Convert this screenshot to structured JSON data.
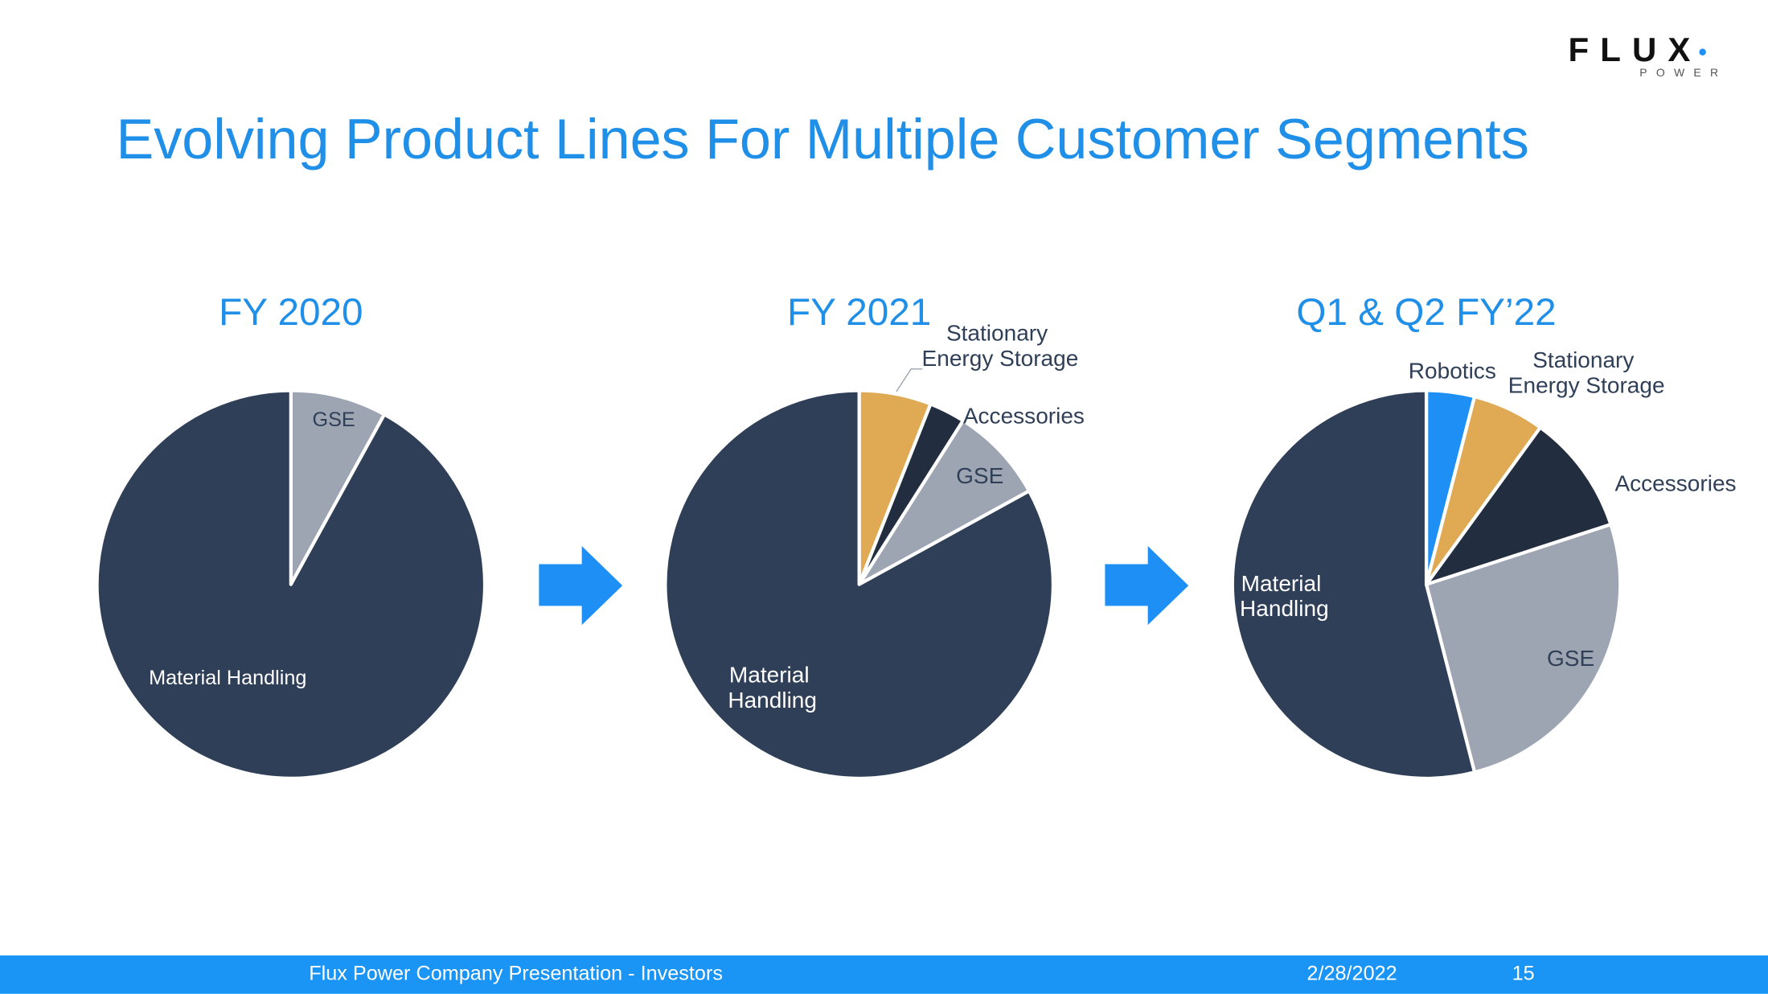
{
  "logo": {
    "name": "FLUX",
    "tagline": "POWER"
  },
  "title": "Evolving Product Lines For Multiple Customer Segments",
  "chart_data": [
    {
      "type": "pie",
      "title": "FY 2020",
      "categories": [
        "GSE",
        "Material Handling"
      ],
      "values": [
        8,
        92
      ],
      "colors": [
        "#9da5b3",
        "#303f58"
      ]
    },
    {
      "type": "pie",
      "title": "FY 2021",
      "categories": [
        "Stationary Energy Storage",
        "Accessories",
        "GSE",
        "Material Handling"
      ],
      "values": [
        6,
        3,
        8,
        83
      ],
      "colors": [
        "#e0aa55",
        "#222d40",
        "#9da5b3",
        "#303f58"
      ]
    },
    {
      "type": "pie",
      "title": "Q1 & Q2 FY’22",
      "categories": [
        "Robotics",
        "Stationary Energy Storage",
        "Accessories",
        "GSE",
        "Material Handling"
      ],
      "values": [
        4,
        6,
        10,
        26,
        54
      ],
      "colors": [
        "#1e90f5",
        "#e0aa55",
        "#222d40",
        "#9da5b3",
        "#303f58"
      ]
    }
  ],
  "footer": {
    "text": "Flux Power Company Presentation - Investors",
    "date": "2/28/2022",
    "page": "15"
  }
}
